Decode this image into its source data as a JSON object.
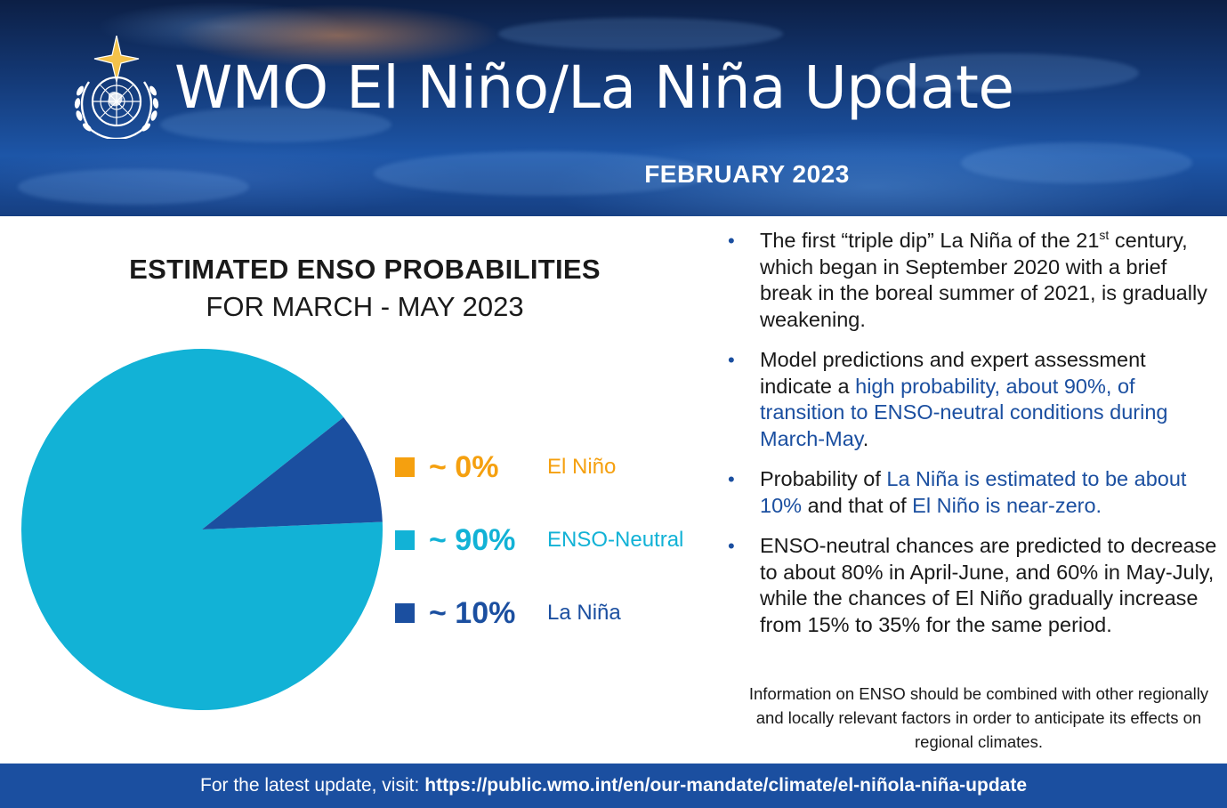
{
  "header": {
    "title": "WMO El Niño/La Niña Update",
    "date": "FEBRUARY 2023"
  },
  "chart_title": {
    "line1": "ESTIMATED ENSO PROBABILITIES",
    "line2": "FOR MARCH - MAY 2023"
  },
  "chart_data": {
    "type": "pie",
    "title": "ESTIMATED ENSO PROBABILITIES FOR MARCH - MAY 2023",
    "slices": [
      {
        "name": "El Niño",
        "value": 0,
        "label": "~ 0%",
        "color": "#f5a00f"
      },
      {
        "name": "ENSO-Neutral",
        "value": 90,
        "label": "~ 90%",
        "color": "#12b2d6"
      },
      {
        "name": "La Niña",
        "value": 10,
        "label": "~ 10%",
        "color": "#1b4fa0"
      }
    ],
    "legend_position": "right"
  },
  "bullets": {
    "b1": {
      "text1": "The first “triple dip” La Niña of the 21",
      "sup": "st",
      "text2": " century, which began in September 2020 with a brief break in the boreal summer of 2021, is gradually weakening."
    },
    "b2": {
      "text1": "Model predictions and expert assessment indicate a ",
      "highlight": "high probability, about 90%, of transition to ENSO-neutral conditions during March-May",
      "text2": "."
    },
    "b3": {
      "text1": "Probability of ",
      "highlight1": "La Niña is estimated to be about 10%",
      "text2": " and that of ",
      "highlight2": "El Niño is near-zero."
    },
    "b4": {
      "text": "ENSO-neutral chances are predicted to decrease to about 80% in April-June, and 60% in May-July, while the chances of El Niño gradually increase from 15% to 35% for the same period."
    }
  },
  "note": "Information on ENSO should be combined with other regionally and locally relevant factors in order to anticipate its effects on regional climates.",
  "footer": {
    "prefix": "For the latest update, visit:",
    "url": "https://public.wmo.int/en/our-mandate/climate/el-niñola-niña-update"
  }
}
